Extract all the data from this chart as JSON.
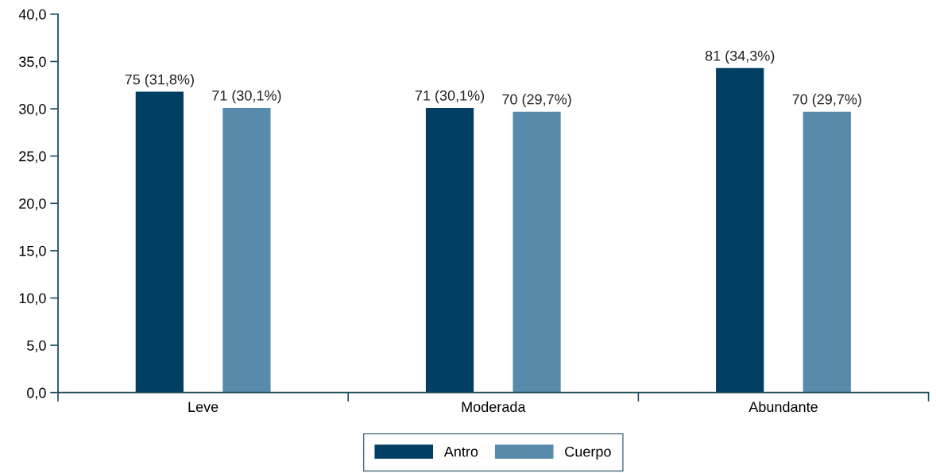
{
  "chart_data": {
    "type": "bar",
    "categories": [
      "Leve",
      "Moderada",
      "Abundante"
    ],
    "series": [
      {
        "name": "Antro",
        "color": "#003f63",
        "values": [
          31.8,
          30.1,
          34.3
        ],
        "value_labels": [
          "75 (31,8%)",
          "71 (30,1%)",
          "81 (34,3%)"
        ]
      },
      {
        "name": "Cuerpo",
        "color": "#588bab",
        "values": [
          30.1,
          29.7,
          29.7
        ],
        "value_labels": [
          "71 (30,1%)",
          "70 (29,7%)",
          "70 (29,7%)"
        ]
      }
    ],
    "ylim": [
      0,
      40
    ],
    "yticks": [
      {
        "value": 0,
        "label": "0,0"
      },
      {
        "value": 5,
        "label": "5,0"
      },
      {
        "value": 10,
        "label": "10,0"
      },
      {
        "value": 15,
        "label": "15,0"
      },
      {
        "value": 20,
        "label": "20,0"
      },
      {
        "value": 25,
        "label": "25,0"
      },
      {
        "value": 30,
        "label": "30,0"
      },
      {
        "value": 35,
        "label": "35,0"
      },
      {
        "value": 40,
        "label": "40,0"
      }
    ],
    "grid": false,
    "legend": "bottom"
  }
}
